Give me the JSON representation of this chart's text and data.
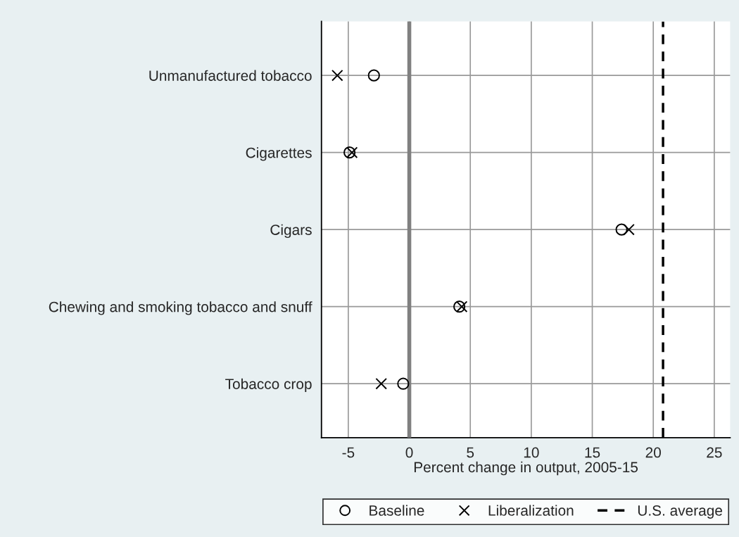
{
  "chart_data": {
    "type": "scatter",
    "xlabel": "Percent change in output, 2005-15",
    "categories": [
      "Unmanufactured tobacco",
      "Cigarettes",
      "Cigars",
      "Chewing and smoking tobacco and snuff",
      "Tobacco crop"
    ],
    "orientation": "horizontal",
    "series": [
      {
        "name": "Baseline",
        "color": "#000000",
        "marker": "circle",
        "values": [
          -2.9,
          -4.9,
          17.4,
          4.1,
          -0.5
        ]
      },
      {
        "name": "Liberalization",
        "color": "#000000",
        "marker": "cross",
        "values": [
          -5.9,
          -4.7,
          18.0,
          4.3,
          -2.3
        ]
      }
    ],
    "ref_lines": [
      {
        "axis": "x",
        "value": 0,
        "color": "#808080",
        "line_style": "solid"
      },
      {
        "axis": "x",
        "value": 20.8,
        "label": "U.S. average",
        "color": "#000000",
        "line_style": "dashed"
      }
    ],
    "xlim": [
      -7.2,
      26.3
    ],
    "xticks": [
      -5,
      0,
      5,
      10,
      15,
      20,
      25
    ],
    "grid": true,
    "legend": "bottom"
  }
}
